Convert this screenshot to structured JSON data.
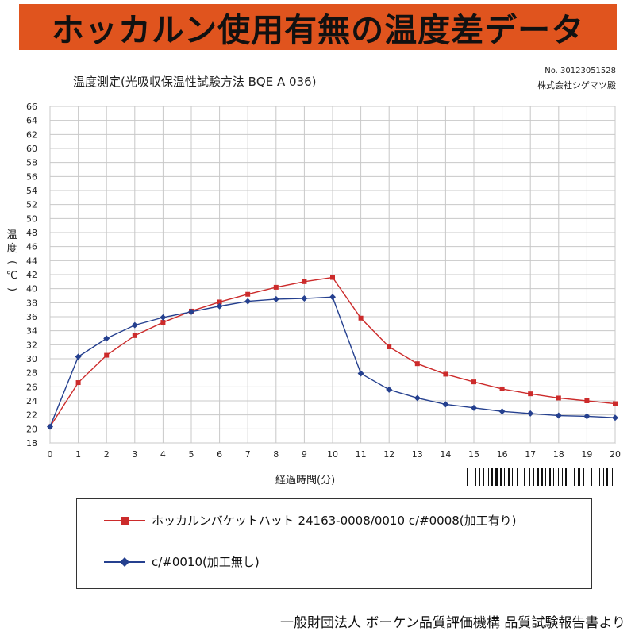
{
  "banner": {
    "title": "ホッカルン使用有無の温度差データ"
  },
  "header": {
    "subtitle": "温度測定(光吸収保温性試験方法 BQE A 036)",
    "report_no": "No. 30123051528",
    "client": "株式会社シゲマツ殿"
  },
  "footer": {
    "source": "一般財団法人 ボーケン品質評価機構 品質試験報告書より"
  },
  "chart_data": {
    "type": "line",
    "xlabel": "経過時間(分)",
    "ylabel": "温度(℃)",
    "xlim": [
      0,
      20
    ],
    "ylim": [
      18,
      66
    ],
    "xticks": [
      0,
      1,
      2,
      3,
      4,
      5,
      6,
      7,
      8,
      9,
      10,
      11,
      12,
      13,
      14,
      15,
      16,
      17,
      18,
      19,
      20
    ],
    "yticks": [
      18,
      20,
      22,
      24,
      26,
      28,
      30,
      32,
      34,
      36,
      38,
      40,
      42,
      44,
      46,
      48,
      50,
      52,
      54,
      56,
      58,
      60,
      62,
      64,
      66
    ],
    "grid": true,
    "legend_position": "bottom",
    "x": [
      0,
      1,
      2,
      3,
      4,
      5,
      6,
      7,
      8,
      9,
      10,
      11,
      12,
      13,
      14,
      15,
      16,
      17,
      18,
      19,
      20
    ],
    "series": [
      {
        "name": "ホッカルンバケットハット 24163-0008/0010 c/#0008(加工有り)",
        "color": "#cc2b2b",
        "marker": "square",
        "values": [
          20.3,
          26.6,
          30.5,
          33.3,
          35.2,
          36.8,
          38.1,
          39.2,
          40.2,
          41.0,
          41.6,
          35.8,
          31.7,
          29.3,
          27.8,
          26.7,
          25.7,
          25.0,
          24.4,
          24.0,
          23.6
        ]
      },
      {
        "name": "c/#0010(加工無し)",
        "color": "#25408f",
        "marker": "diamond",
        "values": [
          20.3,
          30.3,
          32.9,
          34.8,
          35.9,
          36.7,
          37.5,
          38.2,
          38.5,
          38.6,
          38.8,
          27.9,
          25.6,
          24.4,
          23.5,
          23.0,
          22.5,
          22.2,
          21.9,
          21.8,
          21.6
        ]
      }
    ]
  }
}
